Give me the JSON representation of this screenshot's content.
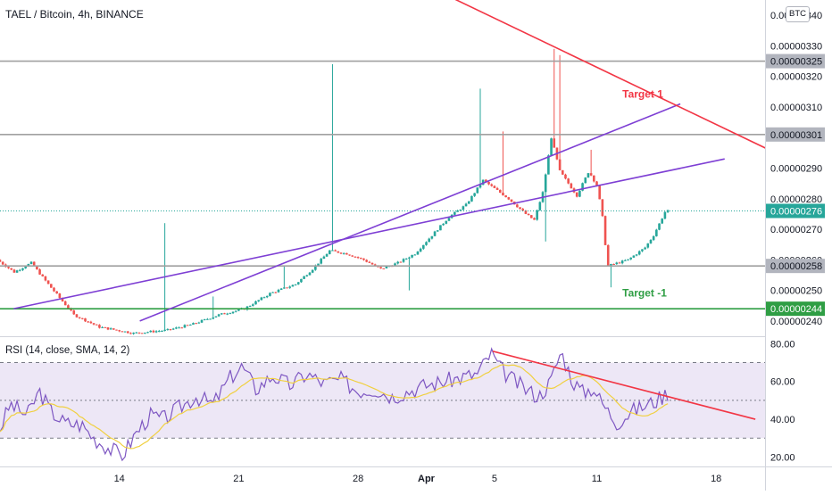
{
  "header": {
    "symbol_line": "TAEL / Bitcoin, 4h, BINANCE",
    "currency_button": "BTC"
  },
  "indicator": {
    "label": "RSI (14, close, SMA, 14, 2)"
  },
  "colors": {
    "bull": "#26a69a",
    "bear": "#ef5350",
    "channel": "#7e3fd4",
    "resistance_line": "#f23645",
    "support_line": "#2f9e44",
    "horizontal_level": "#a0a0a0",
    "rsi_line": "#7e57c2",
    "rsi_ma": "#f0d040",
    "rsi_band": "#ede7f6"
  },
  "chart_data": [
    {
      "type": "candlestick",
      "title": "TAEL / Bitcoin, 4h, BINANCE",
      "ylim": [
        2.35e-06,
        3.45e-06
      ],
      "y_ticks": [
        "0.00000340",
        "0.00000330",
        "0.00000320",
        "0.00000310",
        "0.00000290",
        "0.00000280",
        "0.00000270",
        "0.00000260",
        "0.00000250",
        "0.00000240"
      ],
      "x_ticks": [
        "14",
        "21",
        "28",
        "Apr",
        "5",
        "11",
        "18"
      ],
      "x_tick_days": [
        14,
        21,
        28,
        32,
        36,
        42,
        49
      ],
      "x_axis_start_day": 7,
      "price_labels": [
        {
          "value": "0.00000325",
          "kind": "level"
        },
        {
          "value": "0.00000301",
          "kind": "level"
        },
        {
          "value": "0.00000276",
          "kind": "current"
        },
        {
          "value": "0.00000258",
          "kind": "level"
        },
        {
          "value": "0.00000244",
          "kind": "support"
        }
      ],
      "horizontal_levels": [
        3.25e-06,
        3.01e-06,
        2.58e-06
      ],
      "support_level": 2.44e-06,
      "current_price": 2.76e-06,
      "channel_lower": [
        [
          7.8,
          2.44e-06
        ],
        [
          49.5,
          2.93e-06
        ]
      ],
      "channel_upper": [
        [
          15.2,
          2.4e-06
        ],
        [
          46.9,
          3.11e-06
        ]
      ],
      "resistance_line": [
        [
          33.4,
          3.46e-06
        ],
        [
          52.1,
          2.96e-06
        ]
      ],
      "annotations": [
        {
          "text": "Target 1",
          "day": 43.5,
          "value": 3.13e-06,
          "color": "#f23645"
        },
        {
          "text": "Target -1",
          "day": 43.5,
          "value": 2.48e-06,
          "color": "#2f9e44"
        }
      ],
      "series_keypoints": [
        [
          7.0,
          2.6e-06
        ],
        [
          8.0,
          2.56e-06
        ],
        [
          9.0,
          2.59e-06
        ],
        [
          10.0,
          2.52e-06
        ],
        [
          11.5,
          2.42e-06
        ],
        [
          13.0,
          2.38e-06
        ],
        [
          15.0,
          2.36e-06
        ],
        [
          17.0,
          2.37e-06
        ],
        [
          18.5,
          2.39e-06
        ],
        [
          20.0,
          2.42e-06
        ],
        [
          21.5,
          2.44e-06
        ],
        [
          23.0,
          2.49e-06
        ],
        [
          24.5,
          2.52e-06
        ],
        [
          25.5,
          2.57e-06
        ],
        [
          26.5,
          2.63e-06
        ],
        [
          27.5,
          2.62e-06
        ],
        [
          28.5,
          2.6e-06
        ],
        [
          29.5,
          2.57e-06
        ],
        [
          30.5,
          2.59e-06
        ],
        [
          31.5,
          2.62e-06
        ],
        [
          32.5,
          2.68e-06
        ],
        [
          33.5,
          2.74e-06
        ],
        [
          34.5,
          2.78e-06
        ],
        [
          35.5,
          2.86e-06
        ],
        [
          36.0,
          2.84e-06
        ],
        [
          37.0,
          2.8e-06
        ],
        [
          38.0,
          2.75e-06
        ],
        [
          38.5,
          2.73e-06
        ],
        [
          39.0,
          2.82e-06
        ],
        [
          39.5,
          3e-06
        ],
        [
          40.0,
          2.89e-06
        ],
        [
          41.0,
          2.81e-06
        ],
        [
          41.7,
          2.89e-06
        ],
        [
          42.2,
          2.84e-06
        ],
        [
          42.5,
          2.74e-06
        ],
        [
          42.8,
          2.58e-06
        ],
        [
          44.0,
          2.6e-06
        ],
        [
          45.0,
          2.64e-06
        ],
        [
          45.5,
          2.68e-06
        ],
        [
          46.2,
          2.76e-06
        ]
      ]
    },
    {
      "type": "line",
      "title": "RSI (14, close, SMA, 14, 2)",
      "ylim": [
        15,
        83
      ],
      "y_ticks": [
        "80.00",
        "60.00",
        "40.00",
        "20.00"
      ],
      "band": [
        30,
        70
      ],
      "mid": 50,
      "trendline": [
        [
          35.9,
          76
        ],
        [
          51.3,
          40
        ]
      ],
      "rsi_keypoints": [
        [
          7.0,
          35
        ],
        [
          7.6,
          48
        ],
        [
          8.6,
          42
        ],
        [
          9.3,
          55
        ],
        [
          10.0,
          44
        ],
        [
          10.8,
          38
        ],
        [
          11.8,
          37
        ],
        [
          12.5,
          30
        ],
        [
          13.5,
          24
        ],
        [
          14.2,
          21
        ],
        [
          15.0,
          33
        ],
        [
          15.8,
          42
        ],
        [
          16.6,
          40
        ],
        [
          17.5,
          46
        ],
        [
          18.5,
          52
        ],
        [
          19.5,
          48
        ],
        [
          20.5,
          62
        ],
        [
          21.2,
          68
        ],
        [
          22.0,
          56
        ],
        [
          23.0,
          63
        ],
        [
          24.0,
          58
        ],
        [
          25.0,
          64
        ],
        [
          26.0,
          59
        ],
        [
          27.0,
          61
        ],
        [
          28.0,
          55
        ],
        [
          29.0,
          56
        ],
        [
          30.0,
          52
        ],
        [
          31.0,
          55
        ],
        [
          32.0,
          58
        ],
        [
          33.0,
          60
        ],
        [
          34.0,
          62
        ],
        [
          35.0,
          64
        ],
        [
          35.8,
          75
        ],
        [
          36.4,
          66
        ],
        [
          37.2,
          60
        ],
        [
          37.8,
          56
        ],
        [
          38.6,
          52
        ],
        [
          39.3,
          60
        ],
        [
          39.9,
          76
        ],
        [
          40.6,
          60
        ],
        [
          41.2,
          54
        ],
        [
          41.8,
          57
        ],
        [
          42.2,
          50
        ],
        [
          42.6,
          45
        ],
        [
          43.2,
          38
        ],
        [
          44.0,
          44
        ],
        [
          44.8,
          47
        ],
        [
          45.5,
          50
        ],
        [
          46.3,
          55
        ]
      ]
    }
  ]
}
